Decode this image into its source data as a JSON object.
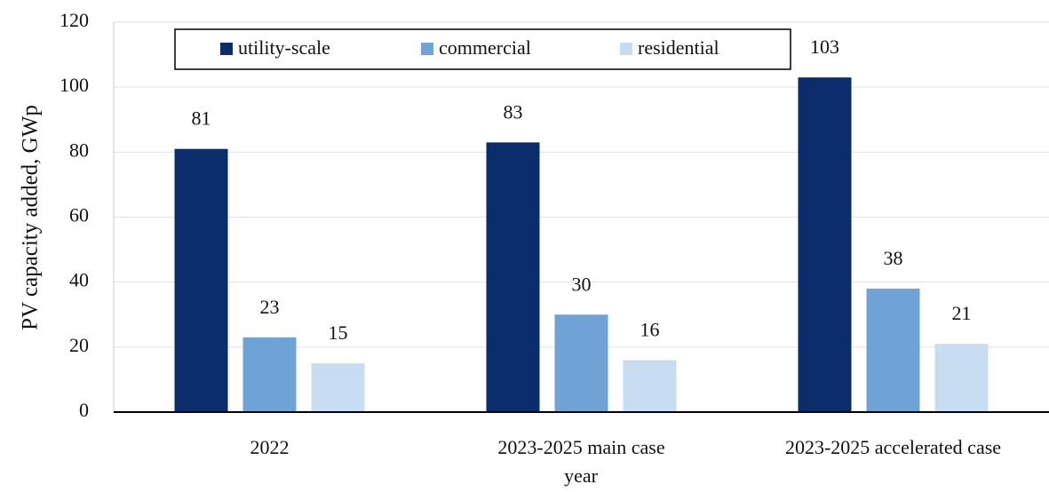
{
  "chart_data": {
    "type": "bar",
    "categories": [
      "2022",
      "2023-2025 main case",
      "2023-2025 accelerated case"
    ],
    "series": [
      {
        "name": "utility-scale",
        "color": "#0c2d6b",
        "values": [
          81,
          83,
          103
        ]
      },
      {
        "name": "commercial",
        "color": "#6fa3d6",
        "values": [
          23,
          30,
          38
        ]
      },
      {
        "name": "residential",
        "color": "#c8dcf2",
        "values": [
          15,
          16,
          21
        ]
      }
    ],
    "xlabel": "year",
    "ylabel": "PV capacity added, GWp",
    "ylim": [
      0,
      120
    ],
    "yticks": [
      0,
      20,
      40,
      60,
      80,
      100,
      120
    ],
    "grid": true,
    "legend": "top"
  }
}
